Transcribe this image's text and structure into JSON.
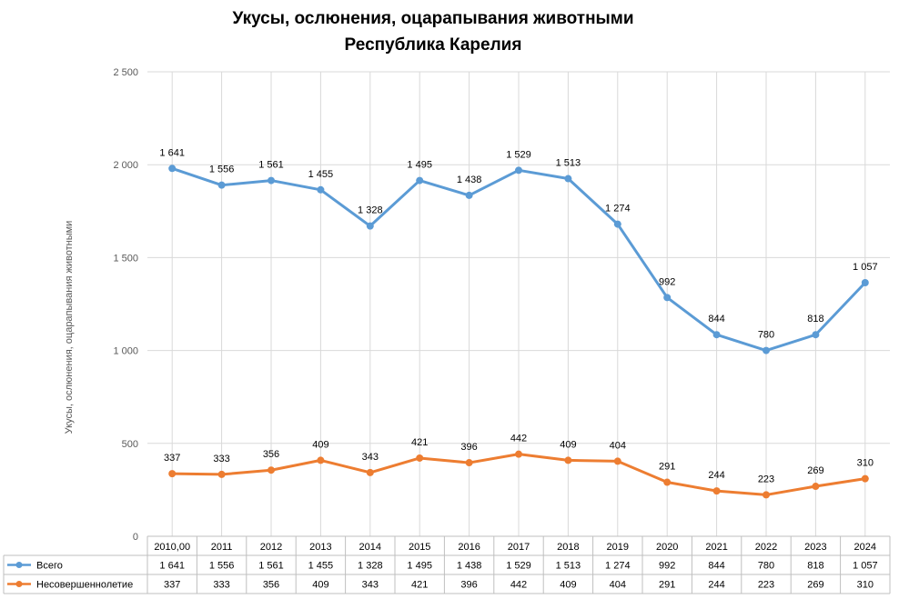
{
  "chart_data": {
    "type": "line",
    "title": "Укусы, ослюнения, оцарапывания животными",
    "subtitle": "Республика Карелия",
    "ylabel": "Укусы, ослюнения, оцарапывания животными",
    "xlabel": "",
    "ylim": [
      0,
      2500
    ],
    "yticks": [
      0,
      500,
      1000,
      1500,
      2000,
      2500
    ],
    "ytick_labels": [
      "0",
      "500",
      "1 000",
      "1 500",
      "2 000",
      "2 500"
    ],
    "categories": [
      "2010,00",
      "2011",
      "2012",
      "2013",
      "2014",
      "2015",
      "2016",
      "2017",
      "2018",
      "2019",
      "2020",
      "2021",
      "2022",
      "2023",
      "2024"
    ],
    "grid": true,
    "legend": "data-table",
    "series": [
      {
        "name": "Всего",
        "color": "#5b9bd5",
        "values": [
          1980,
          1890,
          1915,
          1865,
          1670,
          1915,
          1835,
          1970,
          1925,
          1680,
          1285,
          1085,
          1000,
          1085,
          1365
        ],
        "labels": [
          "1 641",
          "1 556",
          "1 561",
          "1 455",
          "1 328",
          "1 495",
          "1 438",
          "1 529",
          "1 513",
          "1 274",
          "992",
          "844",
          "780",
          "818",
          "1 057"
        ]
      },
      {
        "name": "Несовершеннолетие",
        "color": "#ed7d31",
        "values": [
          337,
          333,
          356,
          409,
          343,
          421,
          396,
          442,
          409,
          404,
          291,
          244,
          223,
          269,
          310
        ],
        "labels": [
          "337",
          "333",
          "356",
          "409",
          "343",
          "421",
          "396",
          "442",
          "409",
          "404",
          "291",
          "244",
          "223",
          "269",
          "310"
        ]
      }
    ]
  }
}
